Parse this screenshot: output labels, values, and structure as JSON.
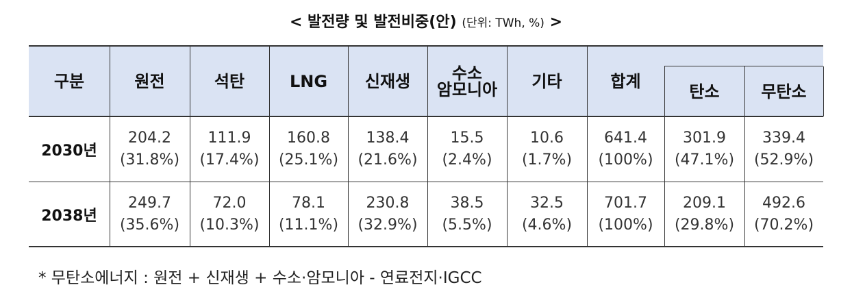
{
  "title": {
    "main": "< 발전량 및 발전비중(안)",
    "unit": "(단위:  TWh, %)",
    "close": ">"
  },
  "table": {
    "header": [
      "구분",
      "원전",
      "석탄",
      "LNG",
      "신재생",
      [
        "수소",
        "암모니아"
      ],
      "기타",
      "합계",
      "탄소",
      "무탄소"
    ],
    "rows": [
      {
        "label": "2030년",
        "cells": [
          [
            "204.2",
            "(31.8%)"
          ],
          [
            "111.9",
            "(17.4%)"
          ],
          [
            "160.8",
            "(25.1%)"
          ],
          [
            "138.4",
            "(21.6%)"
          ],
          [
            "15.5",
            "(2.4%)"
          ],
          [
            "10.6",
            "(1.7%)"
          ],
          [
            "641.4",
            "(100%)"
          ],
          [
            "301.9",
            "(47.1%)"
          ],
          [
            "339.4",
            "(52.9%)"
          ]
        ]
      },
      {
        "label": "2038년",
        "cells": [
          [
            "249.7",
            "(35.6%)"
          ],
          [
            "72.0",
            "(10.3%)"
          ],
          [
            "78.1",
            "(11.1%)"
          ],
          [
            "230.8",
            "(32.9%)"
          ],
          [
            "38.5",
            "(5.5%)"
          ],
          [
            "32.5",
            "(4.6%)"
          ],
          [
            "701.7",
            "(100%)"
          ],
          [
            "209.1",
            "(29.8%)"
          ],
          [
            "492.6",
            "(70.2%)"
          ]
        ]
      }
    ]
  },
  "footnote": "* 무탄소에너지 : 원전 + 신재생 + 수소·암모니아 - 연료전지·IGCC"
}
